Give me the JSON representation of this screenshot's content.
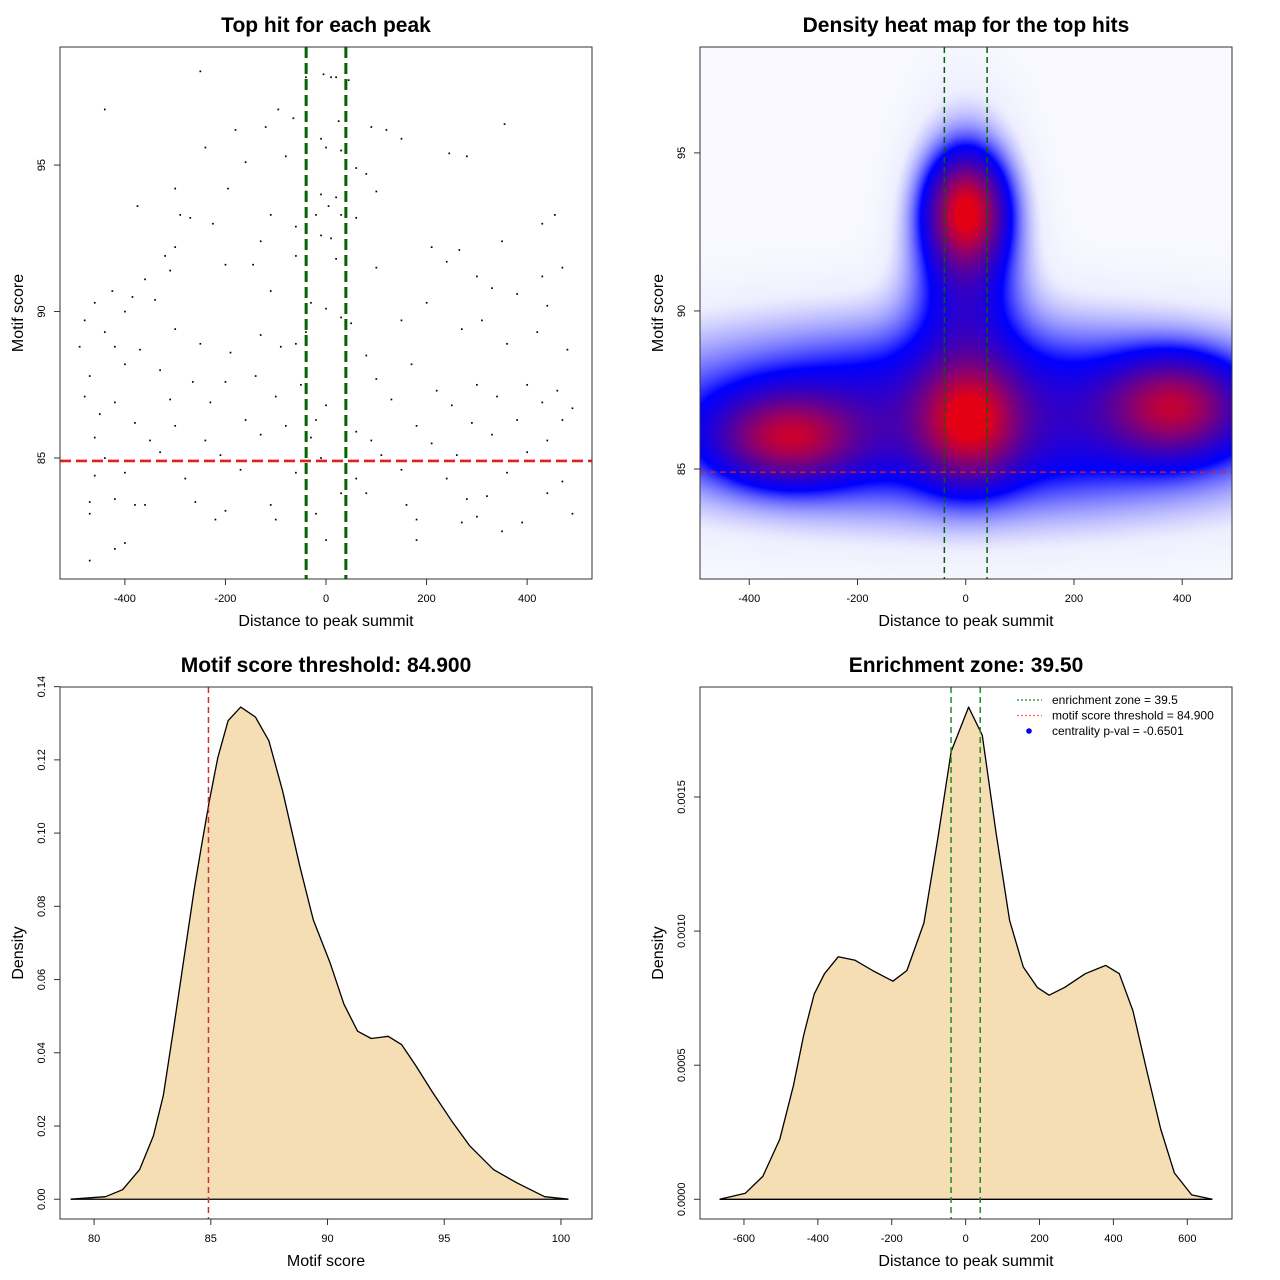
{
  "chart_data": [
    {
      "type": "scatter",
      "title": "Top hit for each peak",
      "xlabel": "Distance to peak summit",
      "ylabel": "Motif score",
      "xlim": [
        -529,
        529
      ],
      "ylim": [
        80.87,
        99.03
      ],
      "xticks": [
        -400,
        -200,
        0,
        200,
        400
      ],
      "xtick_labels": [
        "-400",
        "-200",
        "0",
        "200",
        "400"
      ],
      "yticks": [
        85,
        90,
        95
      ],
      "ytick_labels": [
        "85",
        "90",
        "95"
      ],
      "vlines": [
        -39.5,
        39.5
      ],
      "hline": 84.9,
      "colors": {
        "points": "#000000",
        "vlines": "#006400",
        "hline": "#e02020"
      },
      "points": [
        [
          -5,
          98.1
        ],
        [
          -40,
          98.0
        ],
        [
          10,
          98.0
        ],
        [
          20,
          98.0
        ],
        [
          45,
          97.9
        ],
        [
          -250,
          98.2
        ],
        [
          -440,
          96.9
        ],
        [
          -95,
          96.9
        ],
        [
          -65,
          96.6
        ],
        [
          25,
          96.5
        ],
        [
          90,
          96.3
        ],
        [
          120,
          96.2
        ],
        [
          355,
          96.4
        ],
        [
          -180,
          96.2
        ],
        [
          -120,
          96.3
        ],
        [
          -240,
          95.6
        ],
        [
          245,
          95.4
        ],
        [
          150,
          95.9
        ],
        [
          0,
          95.6
        ],
        [
          -10,
          95.9
        ],
        [
          30,
          95.5
        ],
        [
          -80,
          95.3
        ],
        [
          -160,
          95.1
        ],
        [
          60,
          94.9
        ],
        [
          80,
          94.7
        ],
        [
          280,
          95.3
        ],
        [
          -300,
          94.2
        ],
        [
          -195,
          94.2
        ],
        [
          -40,
          94.1
        ],
        [
          -10,
          94.0
        ],
        [
          20,
          93.9
        ],
        [
          100,
          94.1
        ],
        [
          -375,
          93.6
        ],
        [
          5,
          93.6
        ],
        [
          -20,
          93.3
        ],
        [
          30,
          93.3
        ],
        [
          60,
          93.2
        ],
        [
          -290,
          93.3
        ],
        [
          -270,
          93.2
        ],
        [
          -110,
          93.3
        ],
        [
          455,
          93.3
        ],
        [
          -225,
          93.0
        ],
        [
          -60,
          92.9
        ],
        [
          -10,
          92.6
        ],
        [
          10,
          92.5
        ],
        [
          40,
          92.4
        ],
        [
          430,
          93.0
        ],
        [
          350,
          92.4
        ],
        [
          -300,
          92.2
        ],
        [
          -130,
          92.4
        ],
        [
          210,
          92.2
        ],
        [
          265,
          92.1
        ],
        [
          -320,
          91.9
        ],
        [
          -145,
          91.6
        ],
        [
          -200,
          91.6
        ],
        [
          -60,
          91.9
        ],
        [
          20,
          91.8
        ],
        [
          100,
          91.5
        ],
        [
          470,
          91.5
        ],
        [
          300,
          91.2
        ],
        [
          240,
          91.7
        ],
        [
          -310,
          91.4
        ],
        [
          -360,
          91.1
        ],
        [
          430,
          91.2
        ],
        [
          -425,
          90.7
        ],
        [
          -385,
          90.5
        ],
        [
          -340,
          90.4
        ],
        [
          -400,
          90.0
        ],
        [
          -460,
          90.3
        ],
        [
          -110,
          90.7
        ],
        [
          -30,
          90.3
        ],
        [
          0,
          90.1
        ],
        [
          30,
          89.8
        ],
        [
          200,
          90.3
        ],
        [
          330,
          90.8
        ],
        [
          380,
          90.6
        ],
        [
          440,
          90.2
        ],
        [
          -480,
          89.7
        ],
        [
          -440,
          89.3
        ],
        [
          -300,
          89.4
        ],
        [
          -130,
          89.2
        ],
        [
          -40,
          89.3
        ],
        [
          50,
          89.6
        ],
        [
          150,
          89.7
        ],
        [
          270,
          89.4
        ],
        [
          310,
          89.7
        ],
        [
          420,
          89.3
        ],
        [
          -490,
          88.8
        ],
        [
          -420,
          88.8
        ],
        [
          -370,
          88.7
        ],
        [
          -250,
          88.9
        ],
        [
          -190,
          88.6
        ],
        [
          -90,
          88.8
        ],
        [
          -60,
          88.9
        ],
        [
          80,
          88.5
        ],
        [
          170,
          88.2
        ],
        [
          360,
          88.9
        ],
        [
          480,
          88.7
        ],
        [
          -470,
          87.8
        ],
        [
          -400,
          88.2
        ],
        [
          -330,
          88.0
        ],
        [
          -265,
          87.6
        ],
        [
          -200,
          87.6
        ],
        [
          -140,
          87.8
        ],
        [
          -50,
          87.5
        ],
        [
          40,
          87.3
        ],
        [
          100,
          87.7
        ],
        [
          220,
          87.3
        ],
        [
          300,
          87.5
        ],
        [
          400,
          87.5
        ],
        [
          460,
          87.3
        ],
        [
          -480,
          87.1
        ],
        [
          -420,
          86.9
        ],
        [
          -310,
          87.0
        ],
        [
          -230,
          86.9
        ],
        [
          -100,
          87.1
        ],
        [
          0,
          86.8
        ],
        [
          130,
          87.0
        ],
        [
          250,
          86.8
        ],
        [
          340,
          87.1
        ],
        [
          430,
          86.9
        ],
        [
          490,
          86.7
        ],
        [
          -450,
          86.5
        ],
        [
          -380,
          86.2
        ],
        [
          -300,
          86.1
        ],
        [
          -160,
          86.3
        ],
        [
          -80,
          86.1
        ],
        [
          -20,
          86.3
        ],
        [
          60,
          85.9
        ],
        [
          180,
          86.1
        ],
        [
          290,
          86.2
        ],
        [
          380,
          86.3
        ],
        [
          470,
          86.3
        ],
        [
          -460,
          85.7
        ],
        [
          -350,
          85.6
        ],
        [
          -240,
          85.6
        ],
        [
          -130,
          85.8
        ],
        [
          -30,
          85.7
        ],
        [
          90,
          85.6
        ],
        [
          210,
          85.5
        ],
        [
          330,
          85.8
        ],
        [
          440,
          85.6
        ],
        [
          -440,
          85.0
        ],
        [
          -330,
          85.2
        ],
        [
          -210,
          85.1
        ],
        [
          -10,
          85.0
        ],
        [
          110,
          85.1
        ],
        [
          260,
          85.1
        ],
        [
          400,
          85.2
        ],
        [
          -460,
          84.4
        ],
        [
          -400,
          84.5
        ],
        [
          -280,
          84.3
        ],
        [
          -170,
          84.6
        ],
        [
          -60,
          84.5
        ],
        [
          60,
          84.3
        ],
        [
          150,
          84.6
        ],
        [
          240,
          84.3
        ],
        [
          360,
          84.5
        ],
        [
          470,
          84.2
        ],
        [
          -470,
          83.5
        ],
        [
          -420,
          83.6
        ],
        [
          -360,
          83.4
        ],
        [
          -260,
          83.5
        ],
        [
          -200,
          83.2
        ],
        [
          -110,
          83.4
        ],
        [
          -40,
          83.5
        ],
        [
          30,
          83.8
        ],
        [
          80,
          83.8
        ],
        [
          160,
          83.4
        ],
        [
          280,
          83.6
        ],
        [
          320,
          83.7
        ],
        [
          440,
          83.8
        ],
        [
          -470,
          83.1
        ],
        [
          -380,
          83.4
        ],
        [
          -220,
          82.9
        ],
        [
          -100,
          82.9
        ],
        [
          -20,
          83.1
        ],
        [
          180,
          82.9
        ],
        [
          300,
          83.0
        ],
        [
          390,
          82.8
        ],
        [
          490,
          83.1
        ],
        [
          -400,
          82.1
        ],
        [
          -420,
          81.9
        ],
        [
          -470,
          81.5
        ],
        [
          0,
          82.2
        ],
        [
          180,
          82.2
        ],
        [
          270,
          82.8
        ],
        [
          350,
          82.5
        ]
      ]
    },
    {
      "type": "heatmap",
      "title": "Density heat map for the top hits",
      "xlabel": "Distance to peak summit",
      "ylabel": "Motif score",
      "xlim": [
        -491,
        492
      ],
      "ylim": [
        81.52,
        98.35
      ],
      "xticks": [
        -400,
        -200,
        0,
        200,
        400
      ],
      "xtick_labels": [
        "-400",
        "-200",
        "0",
        "200",
        "400"
      ],
      "yticks": [
        85,
        90,
        95
      ],
      "ytick_labels": [
        "85",
        "90",
        "95"
      ],
      "vlines": [
        -39.5,
        39.5
      ],
      "hline": 84.9,
      "colors": {
        "low": "#ffffff",
        "mid": "#0000ff",
        "high": "#e00014",
        "vlines": "#006400",
        "hline": "#e02020"
      },
      "density_peaks": [
        {
          "x": 0,
          "y": 93.2,
          "sx": 45,
          "sy": 1.1,
          "w": 0.75
        },
        {
          "x": -330,
          "y": 86.0,
          "sx": 85,
          "sy": 0.9,
          "w": 0.6
        },
        {
          "x": 5,
          "y": 86.5,
          "sx": 60,
          "sy": 1.2,
          "w": 0.6
        },
        {
          "x": 385,
          "y": 87.0,
          "sx": 80,
          "sy": 1.0,
          "w": 0.6
        },
        {
          "x": 0,
          "y": 86.6,
          "sx": 420,
          "sy": 1.9,
          "w": 0.42
        },
        {
          "x": 0,
          "y": 91.5,
          "sx": 65,
          "sy": 2.6,
          "w": 0.35
        }
      ]
    },
    {
      "type": "area",
      "title": "Motif score threshold: 84.900",
      "xlabel": "Motif score",
      "ylabel": "Density",
      "xlim": [
        78.54,
        101.33
      ],
      "ylim": [
        -0.0054,
        0.1399
      ],
      "xticks": [
        80,
        85,
        90,
        95,
        100
      ],
      "xtick_labels": [
        "80",
        "85",
        "90",
        "95",
        "100"
      ],
      "yticks": [
        0,
        0.02,
        0.04,
        0.06,
        0.08,
        0.1,
        0.12,
        0.14
      ],
      "ytick_labels": [
        "0.00",
        "0.02",
        "0.04",
        "0.06",
        "0.08",
        "0.10",
        "0.12",
        "0.14"
      ],
      "vlines": [
        84.9
      ],
      "colors": {
        "fill": "#f5deb3",
        "line": "#000000",
        "vlines": "#c83232"
      },
      "x": [
        79.0,
        80.49,
        81.22,
        81.95,
        82.54,
        82.97,
        83.41,
        83.84,
        84.29,
        84.58,
        84.93,
        85.3,
        85.74,
        86.28,
        86.91,
        87.49,
        88.08,
        88.81,
        89.39,
        90.12,
        90.7,
        91.29,
        91.87,
        92.6,
        93.18,
        93.76,
        94.49,
        95.36,
        96.09,
        97.11,
        98.13,
        99.3,
        100.32
      ],
      "y": [
        0,
        0.0007,
        0.0026,
        0.0081,
        0.0173,
        0.0284,
        0.0468,
        0.0653,
        0.0846,
        0.0957,
        0.1086,
        0.1206,
        0.1307,
        0.1344,
        0.1317,
        0.1252,
        0.1114,
        0.0911,
        0.0763,
        0.0644,
        0.0533,
        0.0459,
        0.0439,
        0.0445,
        0.0422,
        0.0367,
        0.0293,
        0.021,
        0.0146,
        0.0081,
        0.0044,
        0.0007,
        0
      ]
    },
    {
      "type": "area",
      "title": "Enrichment zone: 39.50",
      "xlabel": "Distance to peak summit",
      "ylabel": "Density",
      "xlim": [
        -719,
        721
      ],
      "ylim": [
        -7.34e-05,
        0.00191
      ],
      "xticks": [
        -600,
        -400,
        -200,
        0,
        200,
        400,
        600
      ],
      "xtick_labels": [
        "-600",
        "-400",
        "-200",
        "0",
        "200",
        "400",
        "600"
      ],
      "yticks": [
        0,
        0.0005,
        0.001,
        0.0015
      ],
      "ytick_labels": [
        "0.0000",
        "0.0005",
        "0.0010",
        "0.0015"
      ],
      "vlines": [
        -39.5,
        39.5
      ],
      "colors": {
        "fill": "#f5deb3",
        "line": "#000000",
        "vlines": "#228b22",
        "legend_green": "#228b22",
        "legend_red": "#ff6060",
        "legend_blue": "#0000ff"
      },
      "x": [
        -666,
        -596,
        -549,
        -503,
        -466,
        -438,
        -410,
        -382,
        -345,
        -299,
        -252,
        -197,
        -159,
        -113,
        -76,
        -39,
        8,
        45,
        82,
        119,
        156,
        194,
        226,
        268,
        324,
        379,
        416,
        453,
        491,
        528,
        565,
        612,
        668
      ],
      "y": [
        0,
        2.27e-05,
        8.56e-05,
        0.000224,
        0.000425,
        0.000614,
        0.000765,
        0.000841,
        0.000904,
        0.000891,
        0.000853,
        0.000813,
        0.000853,
        0.00103,
        0.00134,
        0.00167,
        0.001835,
        0.00173,
        0.00137,
        0.00104,
        0.000866,
        0.00079,
        0.000761,
        0.00079,
        0.000841,
        0.000872,
        0.000841,
        0.000702,
        0.000476,
        0.000262,
        9.82e-05,
        1.64e-05,
        0
      ],
      "legend": [
        {
          "label": "enrichment zone = 39.5",
          "style": "dotted-line",
          "color": "#228b22"
        },
        {
          "label": "motif score threshold = 84.900",
          "style": "dotted-line",
          "color": "#ff6060"
        },
        {
          "label": "centrality p-val = -0.6501",
          "style": "point",
          "color": "#0000ff"
        }
      ],
      "legend_position": "top-right"
    }
  ]
}
